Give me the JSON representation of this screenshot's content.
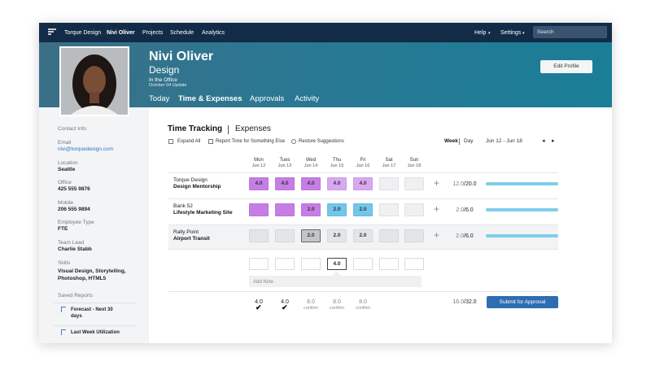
{
  "nav": {
    "items": [
      "Torque Design",
      "Nivi Oliver",
      "Projects",
      "Schedule",
      "Analytics"
    ],
    "help": "Help",
    "settings": "Settings",
    "search": "Search"
  },
  "profile": {
    "name": "Nivi Oliver",
    "role": "Design",
    "status": "In the Office",
    "update": "October 04 Update",
    "edit": "Edit Profile",
    "tabs": [
      "Today",
      "Time & Expenses",
      "Approvals",
      "Activity"
    ]
  },
  "sidebar": {
    "heading": "Contact Info",
    "fields": [
      {
        "label": "Email",
        "value": "nivi@torquedesign.com"
      },
      {
        "label": "Location",
        "value": "Seattle"
      },
      {
        "label": "Office",
        "value": "425 555 9876"
      },
      {
        "label": "Mobile",
        "value": "206 555 9894"
      },
      {
        "label": "Employee Type",
        "value": "FTE"
      },
      {
        "label": "Team Lead",
        "value": "Charlie Stabb"
      },
      {
        "label": "Skills",
        "value": "Visual Design, Storytelling, Photoshop, HTML5"
      }
    ],
    "reports_heading": "Saved Reports",
    "reports": [
      "Forecast - Next 30 days",
      "Last Week Utilization"
    ]
  },
  "tracker": {
    "tabs": [
      "Time Tracking",
      "Expenses"
    ],
    "actions": [
      "Expand All",
      "Report Time for Something Else",
      "Restore Suggestions"
    ],
    "views": [
      "Week",
      "Day"
    ],
    "range": "Jun 12 - Jun 18",
    "days": [
      {
        "day": "Mon",
        "date": "Jun 12"
      },
      {
        "day": "Tues",
        "date": "Jun 13"
      },
      {
        "day": "Wed",
        "date": "Jun 14"
      },
      {
        "day": "Thu",
        "date": "Jun 15"
      },
      {
        "day": "Fri",
        "date": "Jun 16"
      },
      {
        "day": "Sat",
        "date": "Jun 17"
      },
      {
        "day": "Sun",
        "date": "Jun 18"
      }
    ],
    "rows": [
      {
        "client": "Torque Design",
        "project": "Design Mentorship",
        "cells": [
          {
            "value": "4.0",
            "color": "#c67ee4"
          },
          {
            "value": "4.0",
            "color": "#c67ee4"
          },
          {
            "value": "4.0",
            "color": "#c67ee4"
          },
          {
            "value": "4.0",
            "color": "#d9a8f0"
          },
          {
            "value": "4.0",
            "color": "#d9a8f0"
          },
          {
            "value": null,
            "color": "#eff0f2"
          },
          {
            "value": null,
            "color": "#eff0f2"
          }
        ],
        "hours": "12.0",
        "target": "/20.0"
      },
      {
        "client": "Bank 52",
        "project": "Lifestyle Marketing Site",
        "cells": [
          {
            "value": null,
            "color": "#c67ee4"
          },
          {
            "value": null,
            "color": "#c67ee4"
          },
          {
            "value": "2.0",
            "color": "#c67ee4"
          },
          {
            "value": "2.0",
            "color": "#72c6ea"
          },
          {
            "value": "2.0",
            "color": "#72c6ea"
          },
          {
            "value": null,
            "color": "#eff0f2"
          },
          {
            "value": null,
            "color": "#eff0f2"
          }
        ],
        "hours": "2.0",
        "target": "/6.0"
      },
      {
        "client": "Rally Point",
        "project": "Airport Transit",
        "cells": [
          {
            "value": null,
            "color": "#e4e5e7"
          },
          {
            "value": null,
            "color": "#e4e5e7"
          },
          {
            "value": "2.0",
            "color": "#c4c5c8"
          },
          {
            "value": "2.0",
            "color": "#e4e5e7"
          },
          {
            "value": "2.0",
            "color": "#e4e5e7"
          },
          {
            "value": null,
            "color": "#e4e5e7"
          },
          {
            "value": null,
            "color": "#e4e5e7"
          }
        ],
        "hours": "2.0",
        "target": "/6.0"
      }
    ],
    "entry": [
      null,
      null,
      null,
      "4.0",
      null,
      null,
      null
    ],
    "note": "Add Note",
    "totals": [
      "4.0",
      "4.0",
      "8.0",
      "8.0",
      "8.0",
      null,
      null
    ],
    "confirm": [
      null,
      null,
      "confirm",
      "confirm",
      "confirm",
      null,
      null
    ],
    "total_hours": "16.0",
    "total_target": "/32.0",
    "submit": "Submit for Approval"
  }
}
